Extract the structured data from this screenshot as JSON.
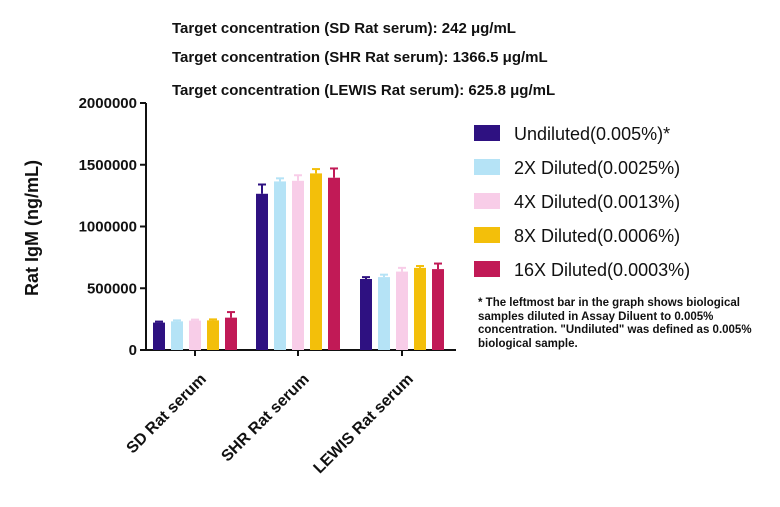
{
  "header_lines": [
    "Target concentration (SD Rat serum): 242 μg/mL",
    "Target concentration (SHR Rat serum): 1366.5 μg/mL",
    "Target concentration (LEWIS Rat serum): 625.8 μg/mL"
  ],
  "footnote": "* The leftmost bar in the graph shows biological samples diluted in Assay Diluent to 0.005% concentration. \"Undiluted\" was defined as 0.005% biological sample.",
  "chart_data": {
    "type": "bar",
    "ylabel": "Rat IgM (ng/mL)",
    "ylim": [
      0,
      2000000
    ],
    "yticks": [
      "0",
      "500000",
      "1000000",
      "1500000",
      "2000000"
    ],
    "categories": [
      "SD  Rat serum",
      "SHR Rat  serum",
      "LEWIS Rat serum"
    ],
    "legend_position": "right",
    "series": [
      {
        "name": "Undiluted(0.005%)*",
        "color": "#2e1181",
        "values": [
          222000,
          1265000,
          575000
        ],
        "errors": [
          8000,
          75000,
          15000
        ]
      },
      {
        "name": "2X Diluted(0.0025%)",
        "color": "#b5e3f6",
        "values": [
          232000,
          1365000,
          590000
        ],
        "errors": [
          8000,
          25000,
          20000
        ]
      },
      {
        "name": "4X Diluted(0.0013%)",
        "color": "#f8cde8",
        "values": [
          238000,
          1370000,
          635000
        ],
        "errors": [
          8000,
          45000,
          30000
        ]
      },
      {
        "name": "8X Diluted(0.0006%)",
        "color": "#f3bf0a",
        "values": [
          240000,
          1430000,
          665000
        ],
        "errors": [
          8000,
          35000,
          15000
        ]
      },
      {
        "name": "16X Diluted(0.0003%)",
        "color": "#c11a56",
        "values": [
          262000,
          1395000,
          655000
        ],
        "errors": [
          45000,
          75000,
          45000
        ]
      }
    ]
  }
}
